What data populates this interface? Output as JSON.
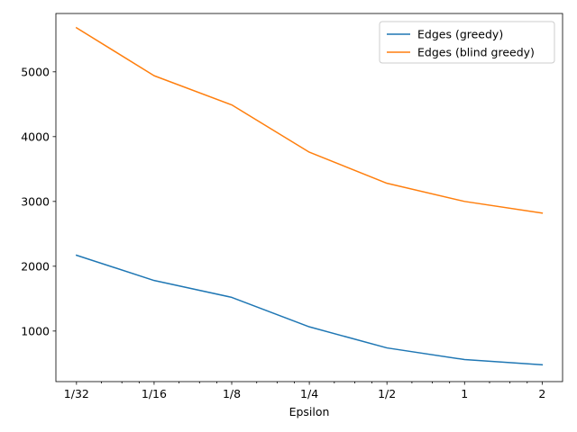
{
  "chart_data": {
    "type": "line",
    "title": "",
    "xlabel": "Epsilon",
    "ylabel": "",
    "x_scale": "log2",
    "x": [
      0.03125,
      0.0625,
      0.125,
      0.25,
      0.5,
      1,
      2
    ],
    "x_tick_labels": [
      "1/32",
      "1/16",
      "1/8",
      "1/4",
      "1/2",
      "1",
      "2"
    ],
    "xlim": [
      0.026,
      2.4
    ],
    "ylim": [
      220,
      5900
    ],
    "y_ticks": [
      1000,
      2000,
      3000,
      4000,
      5000
    ],
    "grid": false,
    "legend_position": "upper-right",
    "series": [
      {
        "name": "Edges (greedy)",
        "color": "#1f77b4",
        "values": [
          2170,
          1780,
          1520,
          1065,
          740,
          560,
          480
        ]
      },
      {
        "name": "Edges (blind greedy)",
        "color": "#ff7f0e",
        "values": [
          5680,
          4940,
          4490,
          3760,
          3280,
          3000,
          2820
        ]
      }
    ]
  }
}
